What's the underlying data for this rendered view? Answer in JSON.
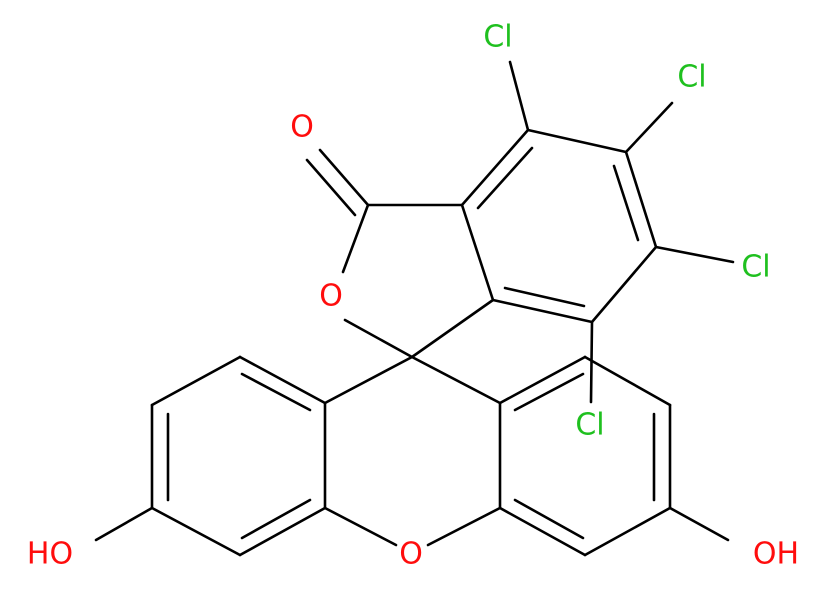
{
  "atoms": {
    "chlorines": [
      "Cl",
      "Cl",
      "Cl",
      "Cl"
    ],
    "carbonyl_oxygen": "O",
    "ring_oxygen": "O",
    "bridge_oxygen": "O",
    "left_hydroxyl": "HO",
    "right_hydroxyl": "OH"
  }
}
